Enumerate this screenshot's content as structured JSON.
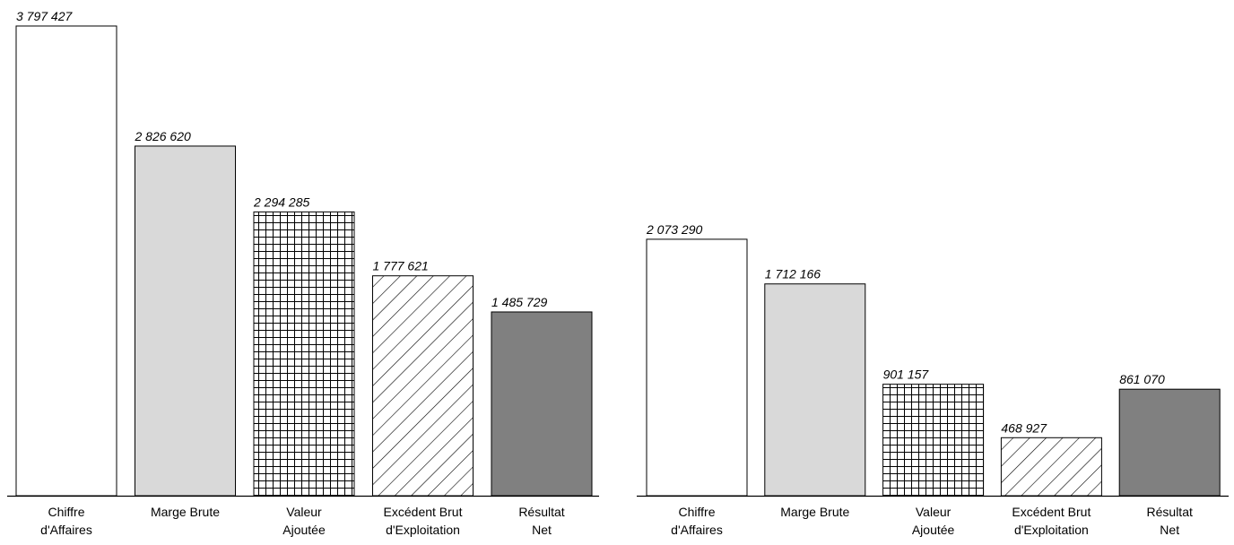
{
  "chart_data": [
    {
      "type": "bar",
      "categories": [
        [
          "Chiffre",
          "d'Affaires"
        ],
        [
          "Marge Brute"
        ],
        [
          "Valeur",
          "Ajoutée"
        ],
        [
          "Excédent Brut",
          "d'Exploitation"
        ],
        [
          "Résultat",
          "Net"
        ]
      ],
      "values": [
        3797427,
        2826620,
        2294285,
        1777621,
        1485729
      ],
      "value_labels": [
        "3 797 427",
        "2 826 620",
        "2 294 285",
        "1 777 621",
        "1 485 729"
      ],
      "patterns": [
        "white",
        "lightgray",
        "grid",
        "diagonal",
        "darkgray"
      ],
      "ylim": [
        0,
        3797427
      ],
      "grid": false,
      "legend": "none"
    },
    {
      "type": "bar",
      "categories": [
        [
          "Chiffre",
          "d'Affaires"
        ],
        [
          "Marge Brute"
        ],
        [
          "Valeur",
          "Ajoutée"
        ],
        [
          "Excédent Brut",
          "d'Exploitation"
        ],
        [
          "Résultat",
          "Net"
        ]
      ],
      "values": [
        2073290,
        1712166,
        901157,
        468927,
        861070
      ],
      "value_labels": [
        "2 073 290",
        "1 712 166",
        "901 157",
        "468 927",
        "861 070"
      ],
      "patterns": [
        "white",
        "lightgray",
        "grid",
        "diagonal",
        "darkgray"
      ],
      "ylim": [
        0,
        3797427
      ],
      "grid": false,
      "legend": "none"
    }
  ],
  "colors": {
    "white": "#ffffff",
    "lightgray": "#d9d9d9",
    "darkgray": "#808080",
    "stroke": "#000000"
  }
}
